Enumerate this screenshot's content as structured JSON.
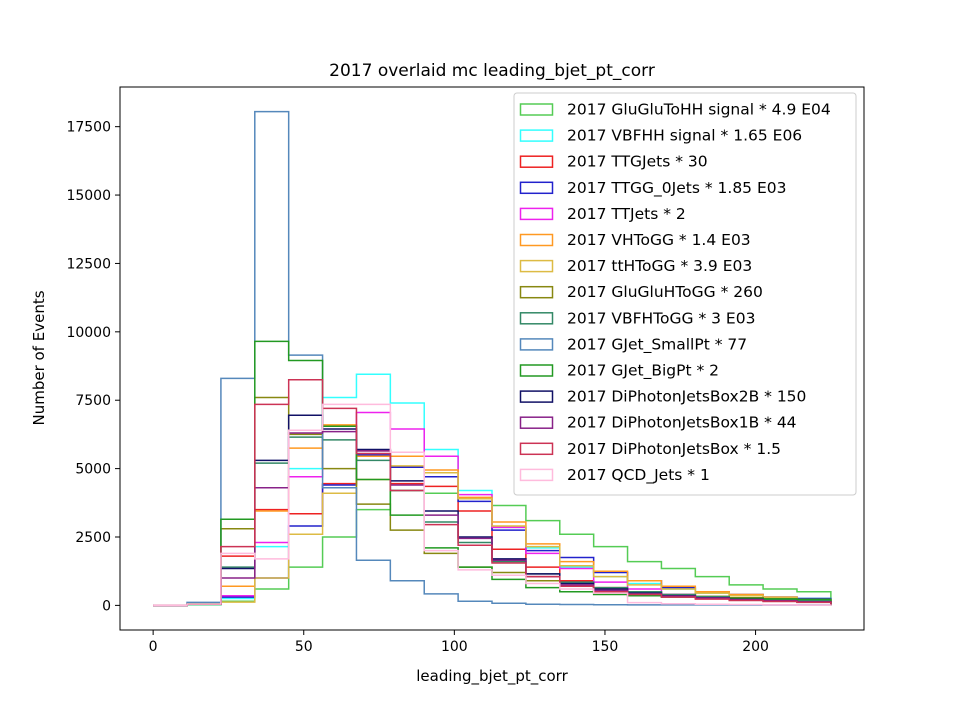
{
  "chart_data": {
    "type": "step_histogram",
    "title": "2017 overlaid mc leading_bjet_pt_corr",
    "xlabel": "leading_bjet_pt_corr",
    "ylabel": "Number of Events",
    "xlim": [
      -11,
      236
    ],
    "ylim": [
      -900,
      18950
    ],
    "xticks": [
      0,
      50,
      100,
      150,
      200
    ],
    "yticks": [
      0,
      2500,
      5000,
      7500,
      10000,
      12500,
      15000,
      17500
    ],
    "bin_edges": [
      0,
      11.25,
      22.5,
      33.75,
      45,
      56.25,
      67.5,
      78.75,
      90,
      101.25,
      112.5,
      123.75,
      135,
      146.25,
      157.5,
      168.75,
      180,
      191.25,
      202.5,
      213.75,
      225
    ],
    "grid": false,
    "legend_position": "top-right",
    "series": [
      {
        "name": "2017 GluGluToHH signal * 4.9 E04",
        "color": "#55cc55",
        "values": [
          0,
          20,
          150,
          600,
          1400,
          2500,
          3500,
          4200,
          4100,
          3900,
          3650,
          3100,
          2600,
          2150,
          1600,
          1350,
          1050,
          750,
          600,
          500
        ]
      },
      {
        "name": "2017 VBFHH signal * 1.65 E06",
        "color": "#33ffff",
        "values": [
          0,
          20,
          250,
          2150,
          5000,
          7600,
          8450,
          7400,
          5700,
          4200,
          2850,
          2100,
          1400,
          1050,
          800,
          600,
          450,
          350,
          300,
          250
        ]
      },
      {
        "name": "2017 TTGJets * 30",
        "color": "#ee2222",
        "values": [
          0,
          40,
          1800,
          3500,
          3350,
          4450,
          5650,
          4450,
          4350,
          3450,
          2050,
          1400,
          900,
          650,
          500,
          400,
          320,
          260,
          200,
          160
        ]
      },
      {
        "name": "2017 TTGG_0Jets * 1.85 E03",
        "color": "#2222cc",
        "values": [
          0,
          40,
          300,
          1000,
          2900,
          4400,
          5500,
          5050,
          4700,
          3800,
          2750,
          2000,
          1750,
          1200,
          900,
          650,
          500,
          400,
          300,
          250
        ]
      },
      {
        "name": "2017 TTJets * 2",
        "color": "#ee22ee",
        "values": [
          0,
          40,
          350,
          2300,
          4700,
          6550,
          7050,
          6450,
          5450,
          4050,
          2850,
          1900,
          1350,
          850,
          600,
          400,
          300,
          220,
          160,
          120
        ]
      },
      {
        "name": "2017 VHToGG * 1.4 E03",
        "color": "#ff9922",
        "values": [
          0,
          40,
          700,
          3450,
          5750,
          6600,
          5450,
          5450,
          4950,
          3950,
          3050,
          2250,
          1600,
          1250,
          900,
          700,
          500,
          400,
          300,
          200
        ]
      },
      {
        "name": "2017 ttHToGG * 3.9 E03",
        "color": "#ddbb44",
        "values": [
          0,
          30,
          120,
          1000,
          2600,
          4100,
          4600,
          5100,
          4850,
          3900,
          2900,
          2150,
          1450,
          1050,
          750,
          600,
          450,
          350,
          280,
          220
        ]
      },
      {
        "name": "2017 GluGluHToGG * 260",
        "color": "#888811",
        "values": [
          0,
          60,
          2800,
          7600,
          6250,
          5000,
          3700,
          2750,
          1900,
          1400,
          1200,
          900,
          700,
          550,
          450,
          380,
          330,
          280,
          240,
          200
        ]
      },
      {
        "name": "2017 VBFHToGG * 3 E03",
        "color": "#338866",
        "values": [
          0,
          40,
          1400,
          5200,
          6150,
          6050,
          5300,
          4200,
          3050,
          2300,
          1600,
          1150,
          850,
          650,
          500,
          400,
          320,
          260,
          220,
          180
        ]
      },
      {
        "name": "2017 GJet_SmallPt * 77",
        "color": "#5588bb",
        "values": [
          0,
          110,
          8300,
          18050,
          9150,
          4300,
          1650,
          900,
          420,
          150,
          80,
          40,
          30,
          25,
          20,
          20,
          18,
          16,
          14,
          12
        ]
      },
      {
        "name": "2017 GJet_BigPt * 2",
        "color": "#229922",
        "values": [
          0,
          50,
          3150,
          9650,
          8950,
          6550,
          4600,
          3300,
          2100,
          1400,
          950,
          650,
          500,
          400,
          350,
          300,
          280,
          260,
          240,
          220
        ]
      },
      {
        "name": "2017 DiPhotonJetsBox2B * 150",
        "color": "#111166",
        "values": [
          0,
          40,
          1350,
          5300,
          6950,
          6450,
          5700,
          4550,
          3450,
          2500,
          1700,
          1150,
          800,
          600,
          450,
          350,
          280,
          220,
          170,
          130
        ]
      },
      {
        "name": "2017 DiPhotonJetsBox1B * 44",
        "color": "#882288",
        "values": [
          0,
          40,
          1000,
          4300,
          6300,
          6350,
          5650,
          4400,
          3300,
          2450,
          1650,
          1050,
          750,
          550,
          420,
          340,
          270,
          210,
          170,
          130
        ]
      },
      {
        "name": "2017 DiPhotonJetsBox * 1.5",
        "color": "#cc3355",
        "values": [
          0,
          40,
          2150,
          7350,
          8250,
          7200,
          5550,
          4200,
          2950,
          2200,
          1550,
          1050,
          700,
          500,
          400,
          300,
          230,
          180,
          140,
          110
        ]
      },
      {
        "name": "2017 QCD_Jets * 1",
        "color": "#ffbbdd",
        "values": [
          0,
          50,
          1900,
          1700,
          6400,
          7350,
          7350,
          5600,
          2000,
          1300,
          1100,
          800,
          600,
          450,
          100,
          60,
          40,
          30,
          20,
          10
        ]
      }
    ]
  }
}
